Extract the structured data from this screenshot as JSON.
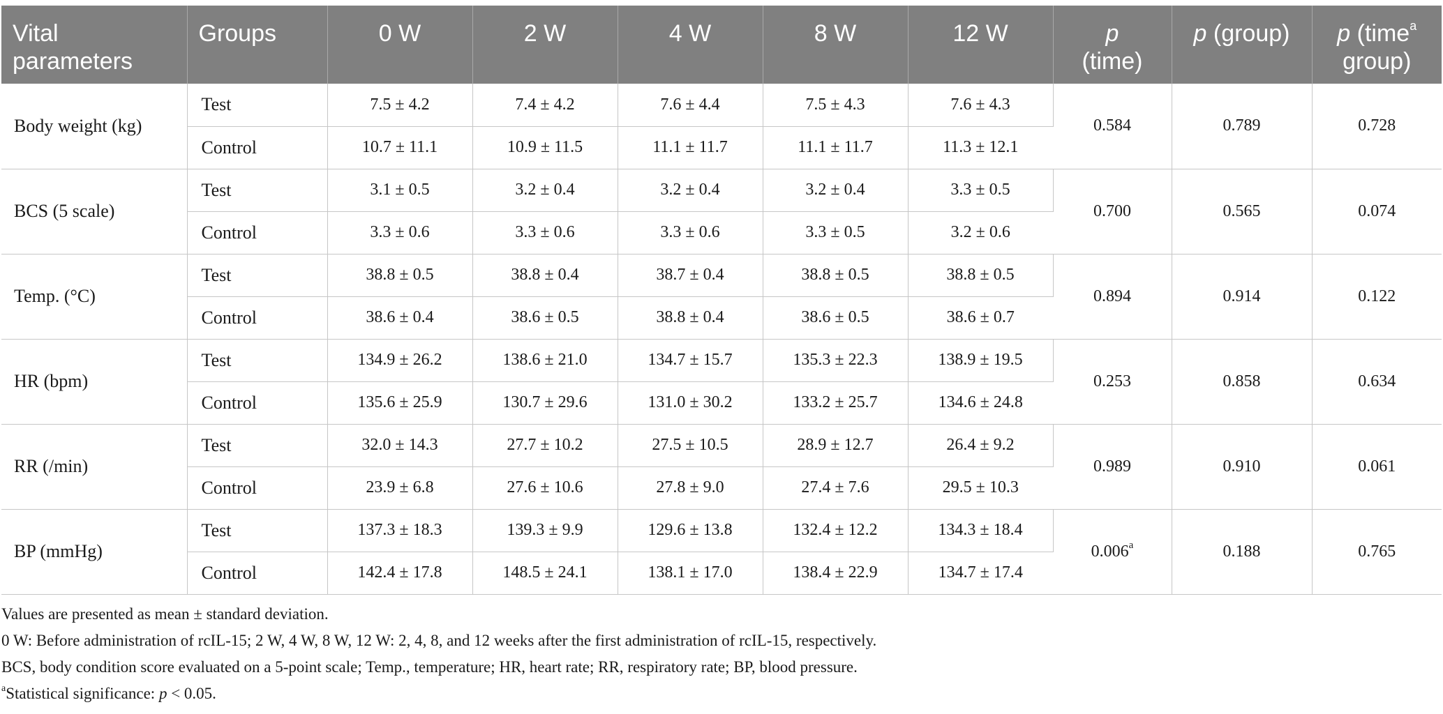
{
  "table": {
    "headers": {
      "param": "Vital parameters",
      "groups": "Groups",
      "weeks": [
        "0 W",
        "2 W",
        "4 W",
        "8 W",
        "12 W"
      ],
      "p_time_p": "p",
      "p_time_label": "(time)",
      "p_group_p": "p",
      "p_group_label": "(group)",
      "p_inter_p": "p",
      "p_inter_pre": "(time",
      "p_inter_sup": "a",
      "p_inter_post": "group)"
    },
    "rows": [
      {
        "param": "Body weight (kg)",
        "test_label": "Test",
        "control_label": "Control",
        "test": [
          "7.5 ± 4.2",
          "7.4 ± 4.2",
          "7.6 ± 4.4",
          "7.5 ± 4.3",
          "7.6 ± 4.3"
        ],
        "control": [
          "10.7 ± 11.1",
          "10.9 ± 11.5",
          "11.1 ± 11.7",
          "11.1 ± 11.7",
          "11.3 ± 12.1"
        ],
        "p_time": "0.584",
        "p_time_sup": "",
        "p_group": "0.789",
        "p_inter": "0.728"
      },
      {
        "param": "BCS (5 scale)",
        "test_label": "Test",
        "control_label": "Control",
        "test": [
          "3.1 ± 0.5",
          "3.2 ± 0.4",
          "3.2 ± 0.4",
          "3.2 ± 0.4",
          "3.3 ± 0.5"
        ],
        "control": [
          "3.3 ± 0.6",
          "3.3 ± 0.6",
          "3.3 ± 0.6",
          "3.3 ± 0.5",
          "3.2 ± 0.6"
        ],
        "p_time": "0.700",
        "p_time_sup": "",
        "p_group": "0.565",
        "p_inter": "0.074"
      },
      {
        "param": "Temp. (°C)",
        "test_label": "Test",
        "control_label": "Control",
        "test": [
          "38.8 ± 0.5",
          "38.8 ± 0.4",
          "38.7 ± 0.4",
          "38.8 ± 0.5",
          "38.8 ± 0.5"
        ],
        "control": [
          "38.6 ± 0.4",
          "38.6 ± 0.5",
          "38.8 ± 0.4",
          "38.6 ± 0.5",
          "38.6 ± 0.7"
        ],
        "p_time": "0.894",
        "p_time_sup": "",
        "p_group": "0.914",
        "p_inter": "0.122"
      },
      {
        "param": "HR (bpm)",
        "test_label": "Test",
        "control_label": "Control",
        "test": [
          "134.9 ± 26.2",
          "138.6 ± 21.0",
          "134.7 ± 15.7",
          "135.3 ± 22.3",
          "138.9 ± 19.5"
        ],
        "control": [
          "135.6 ± 25.9",
          "130.7 ± 29.6",
          "131.0 ± 30.2",
          "133.2 ± 25.7",
          "134.6 ± 24.8"
        ],
        "p_time": "0.253",
        "p_time_sup": "",
        "p_group": "0.858",
        "p_inter": "0.634"
      },
      {
        "param": "RR (/min)",
        "test_label": "Test",
        "control_label": "Control",
        "test": [
          "32.0 ± 14.3",
          "27.7 ± 10.2",
          "27.5 ± 10.5",
          "28.9 ± 12.7",
          "26.4 ± 9.2"
        ],
        "control": [
          "23.9 ± 6.8",
          "27.6 ± 10.6",
          "27.8 ± 9.0",
          "27.4 ± 7.6",
          "29.5 ± 10.3"
        ],
        "p_time": "0.989",
        "p_time_sup": "",
        "p_group": "0.910",
        "p_inter": "0.061"
      },
      {
        "param": "BP (mmHg)",
        "test_label": "Test",
        "control_label": "Control",
        "test": [
          "137.3 ± 18.3",
          "139.3 ± 9.9",
          "129.6 ± 13.8",
          "132.4 ± 12.2",
          "134.3 ± 18.4"
        ],
        "control": [
          "142.4 ± 17.8",
          "148.5 ± 24.1",
          "138.1 ± 17.0",
          "138.4 ± 22.9",
          "134.7 ± 17.4"
        ],
        "p_time": "0.006",
        "p_time_sup": "a",
        "p_group": "0.188",
        "p_inter": "0.765"
      }
    ]
  },
  "notes": {
    "line1": "Values are presented as mean ± standard deviation.",
    "line2": "0 W: Before administration of rcIL-15; 2 W, 4 W, 8 W, 12 W: 2, 4, 8, and 12 weeks after the first administration of rcIL-15, respectively.",
    "line3": "BCS, body condition score evaluated on a 5-point scale; Temp., temperature; HR, heart rate; RR, respiratory rate; BP, blood pressure.",
    "line4_sup": "a",
    "line4_text": "Statistical significance: ",
    "line4_p": "p",
    "line4_tail": " < 0.05."
  },
  "colors": {
    "header_bg": "#808080",
    "header_text": "#ffffff",
    "grid": "#c6c6c6"
  }
}
